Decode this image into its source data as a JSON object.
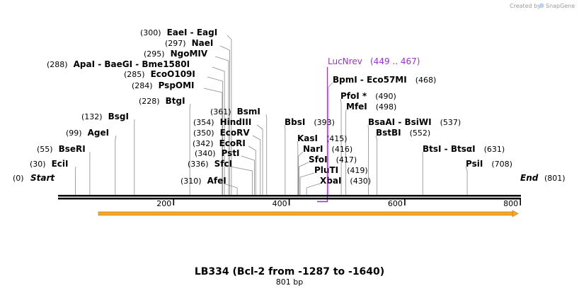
{
  "credit": {
    "prefix": "Created by",
    "brand": "SnapGene"
  },
  "title": "LB334 (Bcl-2 from -1287 to -1640)",
  "length_label": "801 bp",
  "sequence": {
    "start": 0,
    "end": 801,
    "axis_ticks": [
      200,
      400,
      600,
      800
    ]
  },
  "ends": [
    {
      "pos": "(0)",
      "name": "Start",
      "side": "left"
    },
    {
      "pos": "(801)",
      "name": "End",
      "side": "right"
    }
  ],
  "primer": {
    "name": "LucNrev",
    "range": "(449 .. 467)",
    "color": "#9b30d9"
  },
  "feature_arrow": {
    "color": "#f5a623"
  },
  "sites": [
    {
      "pos": "(30)",
      "name": "EciI",
      "bp": 30
    },
    {
      "pos": "(55)",
      "name": "BseRI",
      "bp": 55
    },
    {
      "pos": "(99)",
      "name": "AgeI",
      "bp": 99
    },
    {
      "pos": "(132)",
      "name": "BsgI",
      "bp": 132
    },
    {
      "pos": "(228)",
      "name": "BtgI",
      "bp": 228
    },
    {
      "pos": "(284)",
      "name": "PspOMI",
      "bp": 284
    },
    {
      "pos": "(285)",
      "name": "EcoO109I",
      "bp": 285
    },
    {
      "pos": "(288)",
      "name": "ApaI - BaeGI - Bme1580I",
      "bp": 288
    },
    {
      "pos": "(295)",
      "name": "NgoMIV",
      "bp": 295
    },
    {
      "pos": "(297)",
      "name": "NaeI",
      "bp": 297
    },
    {
      "pos": "(300)",
      "name": "EaeI - EagI",
      "bp": 300
    },
    {
      "pos": "(310)",
      "name": "AfeI",
      "bp": 310
    },
    {
      "pos": "(336)",
      "name": "SfcI",
      "bp": 336
    },
    {
      "pos": "(340)",
      "name": "PstI",
      "bp": 340
    },
    {
      "pos": "(342)",
      "name": "EcoRI",
      "bp": 342
    },
    {
      "pos": "(350)",
      "name": "EcoRV",
      "bp": 350
    },
    {
      "pos": "(354)",
      "name": "HindIII",
      "bp": 354
    },
    {
      "pos": "(361)",
      "name": "BsmI",
      "bp": 361
    },
    {
      "pos": "(393)",
      "name": "BbsI",
      "bp": 393
    },
    {
      "pos": "(415)",
      "name": "KasI",
      "bp": 415
    },
    {
      "pos": "(416)",
      "name": "NarI",
      "bp": 416
    },
    {
      "pos": "(417)",
      "name": "SfoI",
      "bp": 417
    },
    {
      "pos": "(419)",
      "name": "PluTI",
      "bp": 419
    },
    {
      "pos": "(430)",
      "name": "XbaI",
      "bp": 430
    },
    {
      "pos": "(468)",
      "name": "BpmI - Eco57MI",
      "bp": 468
    },
    {
      "pos": "(490)",
      "name": "PfoI *",
      "bp": 490
    },
    {
      "pos": "(498)",
      "name": "MfeI",
      "bp": 498
    },
    {
      "pos": "(537)",
      "name": "BsaAI - BsiWI",
      "bp": 537
    },
    {
      "pos": "(552)",
      "name": "BstBI",
      "bp": 552
    },
    {
      "pos": "(631)",
      "name": "BtsI - BtsαI",
      "bp": 631
    },
    {
      "pos": "(708)",
      "name": "PsiI",
      "bp": 708
    }
  ]
}
